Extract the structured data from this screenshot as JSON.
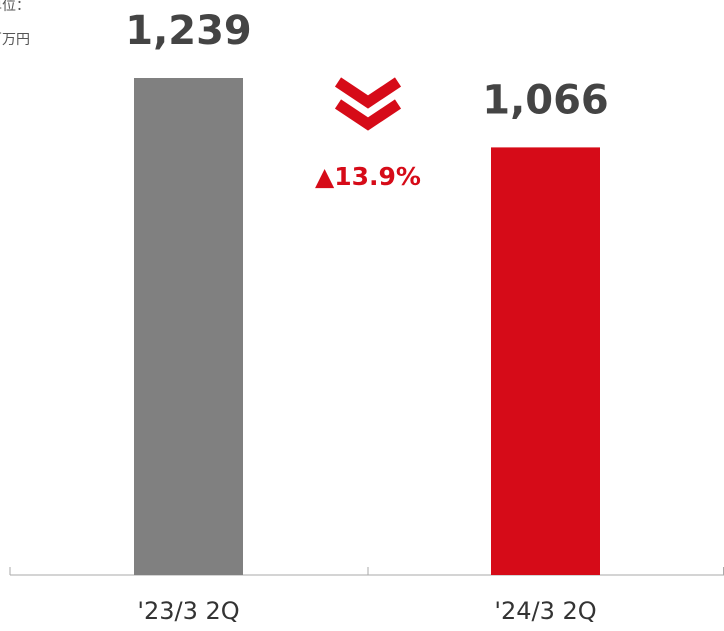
{
  "chart_data": {
    "type": "bar",
    "unit_label": [
      "単位：",
      "百万円"
    ],
    "categories": [
      "'23/3 2Q",
      "'24/3 2Q"
    ],
    "series": [
      {
        "values": [
          1239,
          1066
        ],
        "value_labels": [
          "1,239",
          "1,066"
        ],
        "colors": [
          "#808080",
          "#d60b18"
        ]
      }
    ],
    "annotation": "▲13.9%",
    "annotation_color": "#d60b18"
  }
}
